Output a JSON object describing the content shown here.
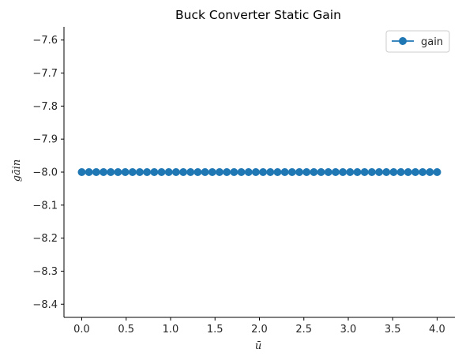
{
  "chart_data": {
    "type": "line",
    "title": "Buck Converter Static Gain",
    "xlabel": "ū",
    "ylabel": "gāin",
    "xlim": [
      -0.2,
      4.2
    ],
    "ylim": [
      -8.44,
      -7.56
    ],
    "xticks": [
      0.0,
      0.5,
      1.0,
      1.5,
      2.0,
      2.5,
      3.0,
      3.5,
      4.0
    ],
    "xtick_labels": [
      "0.0",
      "0.5",
      "1.0",
      "1.5",
      "2.0",
      "2.5",
      "3.0",
      "3.5",
      "4.0"
    ],
    "yticks": [
      -7.6,
      -7.7,
      -7.8,
      -7.9,
      -8.0,
      -8.1,
      -8.2,
      -8.3,
      -8.4
    ],
    "ytick_labels": [
      "−7.6",
      "−7.7",
      "−7.8",
      "−7.9",
      "−8.0",
      "−8.1",
      "−8.2",
      "−8.3",
      "−8.4"
    ],
    "grid": false,
    "legend_position": "top-right",
    "series": [
      {
        "name": "gain",
        "color": "#1f77b4",
        "marker": "circle",
        "x_start": 0.0,
        "x_end": 4.0,
        "count": 50,
        "y_constant": -8.0
      }
    ]
  }
}
